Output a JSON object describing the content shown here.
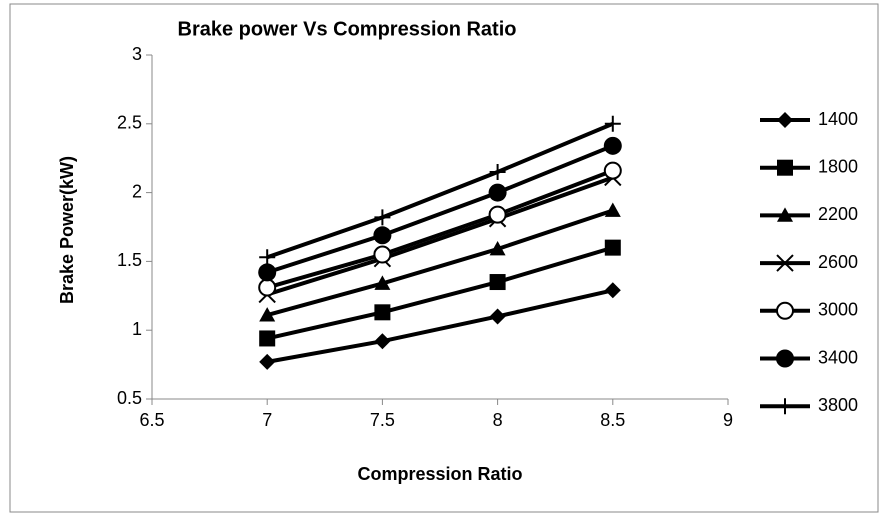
{
  "chart_data": {
    "type": "line",
    "title": "Brake power Vs Compression Ratio",
    "x_label": "Compression Ratio",
    "y_label": "Brake Power(kW)",
    "x": [
      7,
      7.5,
      8,
      8.5
    ],
    "xlim": [
      6.5,
      9
    ],
    "xticks": [
      6.5,
      7,
      7.5,
      8,
      8.5,
      9
    ],
    "ylim": [
      0.5,
      3
    ],
    "yticks": [
      0.5,
      1,
      1.5,
      2,
      2.5,
      3
    ],
    "grid": false,
    "legend": "right",
    "series": [
      {
        "name": "1400",
        "color": "#000000",
        "marker": "diamond",
        "values": [
          0.77,
          0.92,
          1.1,
          1.29
        ]
      },
      {
        "name": "1800",
        "color": "#000000",
        "marker": "square",
        "values": [
          0.94,
          1.13,
          1.35,
          1.6
        ]
      },
      {
        "name": "2200",
        "color": "#000000",
        "marker": "triangle",
        "values": [
          1.11,
          1.34,
          1.59,
          1.87
        ]
      },
      {
        "name": "2600",
        "color": "#000000",
        "marker": "x",
        "values": [
          1.26,
          1.52,
          1.81,
          2.11
        ]
      },
      {
        "name": "3000",
        "color": "#000000",
        "marker": "open-circle",
        "values": [
          1.31,
          1.55,
          1.84,
          2.16
        ]
      },
      {
        "name": "3400",
        "color": "#000000",
        "marker": "circle",
        "values": [
          1.42,
          1.69,
          2.0,
          2.34
        ]
      },
      {
        "name": "3800",
        "color": "#000000",
        "marker": "plus",
        "values": [
          1.53,
          1.82,
          2.15,
          2.5
        ]
      }
    ]
  }
}
